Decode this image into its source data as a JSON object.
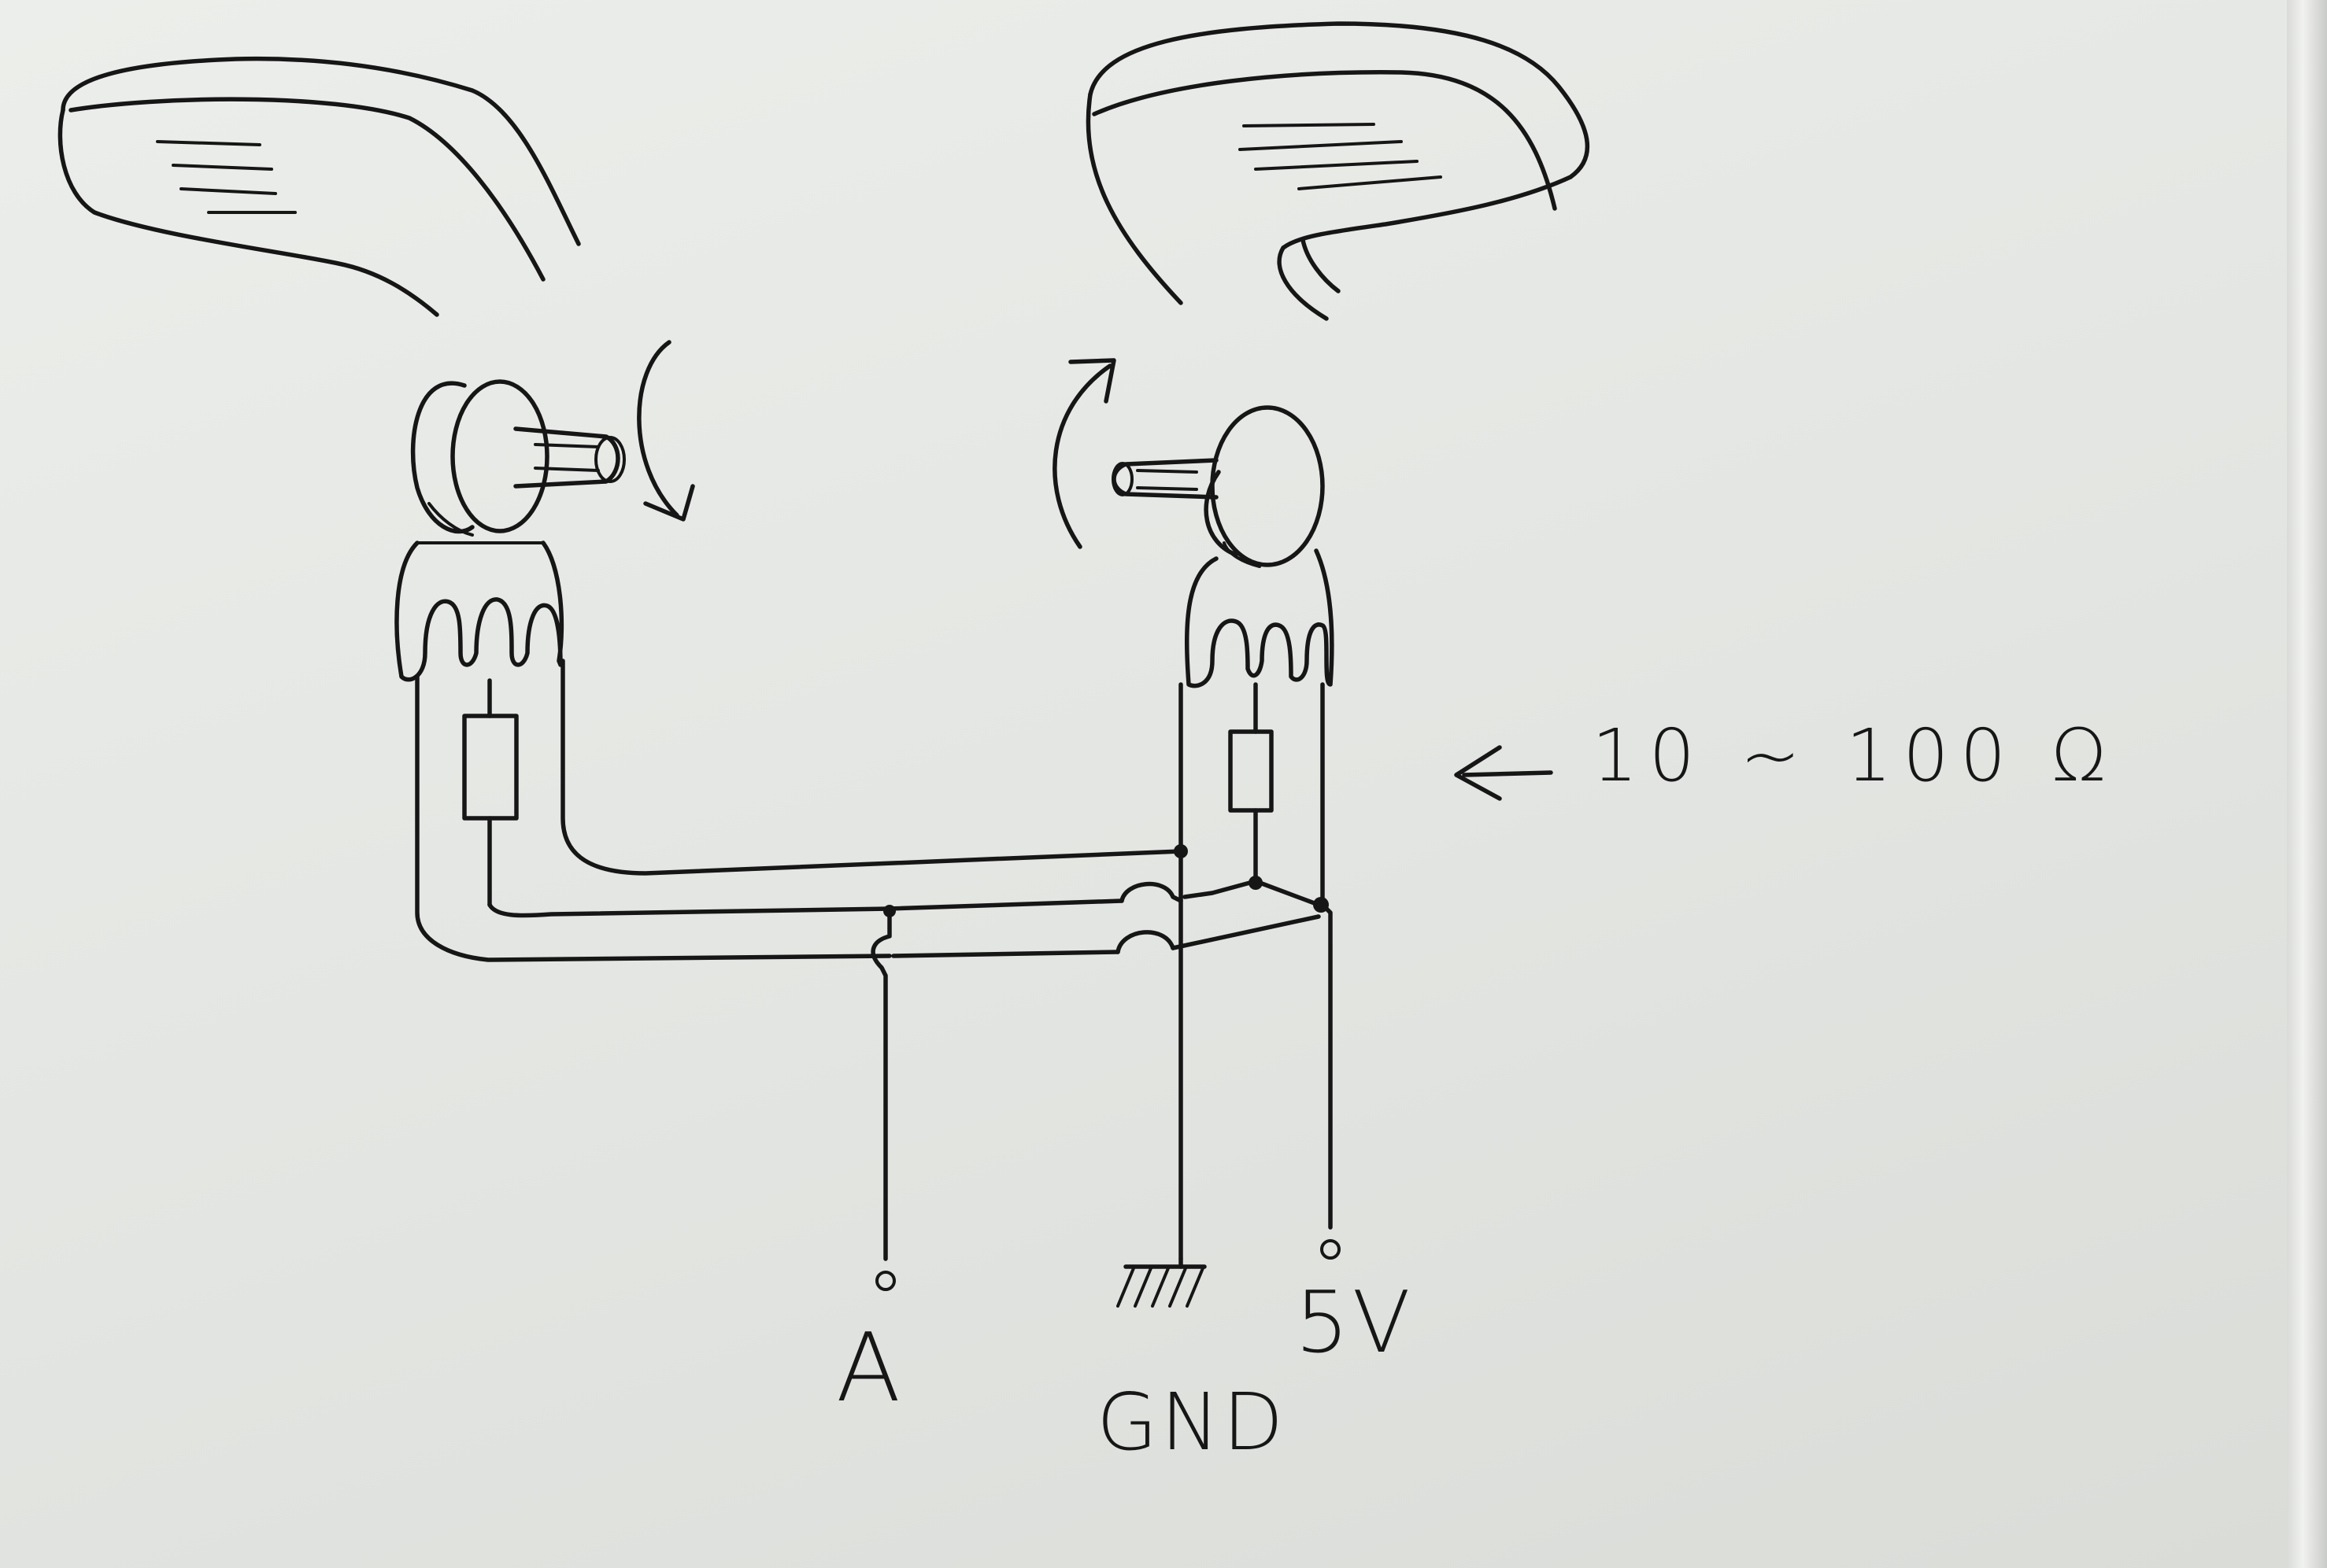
{
  "annotations": {
    "terminal_a": "A",
    "terminal_gnd": "GND",
    "terminal_5v": "5V",
    "resistor_value": "10 ~ 100 Ω",
    "resistor_pointer": "←"
  },
  "colors": {
    "paper": "#e6e8e5",
    "ink": "#161616"
  },
  "icons": {
    "rotation_left": "curved-arrow-down-icon",
    "rotation_right": "curved-arrow-up-icon",
    "ground": "ground-symbol-icon"
  }
}
